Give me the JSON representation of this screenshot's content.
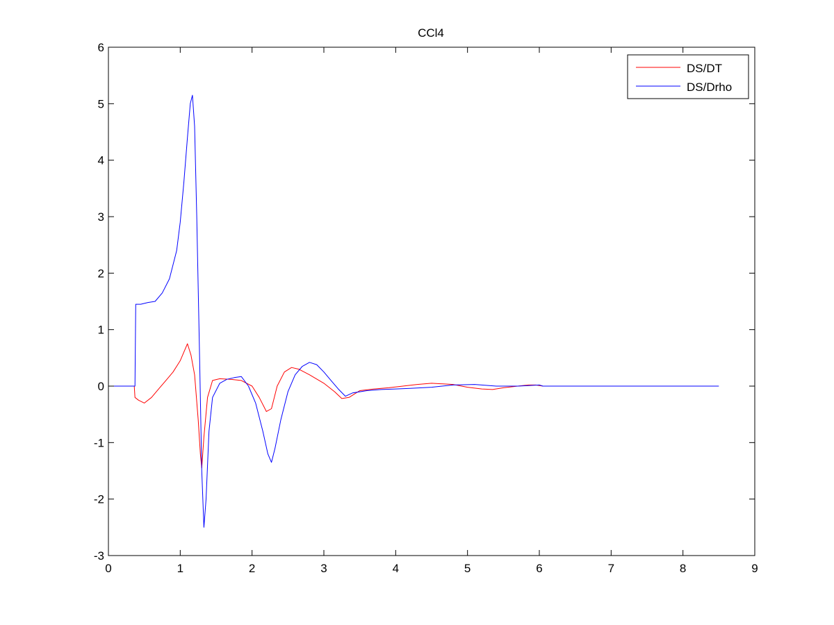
{
  "chart_data": {
    "type": "line",
    "title": "CCl4",
    "xlabel": "",
    "ylabel": "",
    "xlim": [
      0,
      9
    ],
    "ylim": [
      -3,
      6
    ],
    "xticks": [
      0,
      1,
      2,
      3,
      4,
      5,
      6,
      7,
      8,
      9
    ],
    "yticks": [
      -3,
      -2,
      -1,
      0,
      1,
      2,
      3,
      4,
      5,
      6
    ],
    "grid": false,
    "legend_position": "top-right",
    "series": [
      {
        "name": "DS/DT",
        "color": "#ff0000",
        "x": [
          0,
          0.36,
          0.37,
          0.42,
          0.5,
          0.6,
          0.7,
          0.8,
          0.9,
          1.0,
          1.05,
          1.1,
          1.15,
          1.2,
          1.25,
          1.28,
          1.3,
          1.33,
          1.38,
          1.45,
          1.55,
          1.7,
          1.85,
          2.0,
          2.1,
          2.2,
          2.27,
          2.35,
          2.45,
          2.55,
          2.65,
          2.8,
          3.0,
          3.15,
          3.25,
          3.35,
          3.5,
          3.7,
          3.9,
          4.1,
          4.3,
          4.5,
          4.8,
          5.0,
          5.2,
          5.35,
          5.5,
          5.7,
          5.85,
          5.95,
          6.05
        ],
        "y": [
          0,
          0,
          -0.2,
          -0.25,
          -0.3,
          -0.2,
          -0.05,
          0.1,
          0.25,
          0.45,
          0.6,
          0.75,
          0.55,
          0.2,
          -0.6,
          -1.2,
          -1.45,
          -0.9,
          -0.2,
          0.1,
          0.13,
          0.12,
          0.1,
          0.0,
          -0.2,
          -0.45,
          -0.4,
          0.0,
          0.25,
          0.33,
          0.3,
          0.2,
          0.05,
          -0.1,
          -0.22,
          -0.2,
          -0.08,
          -0.05,
          -0.03,
          0.0,
          0.03,
          0.05,
          0.03,
          -0.02,
          -0.05,
          -0.06,
          -0.03,
          0.0,
          0.02,
          0.02,
          0.0
        ]
      },
      {
        "name": "DS/Drho",
        "color": "#0000ff",
        "x": [
          0,
          0.37,
          0.38,
          0.45,
          0.55,
          0.65,
          0.75,
          0.85,
          0.95,
          1.0,
          1.05,
          1.1,
          1.14,
          1.17,
          1.2,
          1.23,
          1.27,
          1.3,
          1.33,
          1.36,
          1.4,
          1.45,
          1.55,
          1.65,
          1.75,
          1.85,
          1.95,
          2.05,
          2.15,
          2.22,
          2.27,
          2.32,
          2.4,
          2.5,
          2.6,
          2.7,
          2.8,
          2.9,
          3.0,
          3.1,
          3.2,
          3.3,
          3.4,
          3.6,
          3.8,
          4.0,
          4.2,
          4.5,
          4.8,
          5.1,
          5.4,
          5.7,
          6.0,
          6.05,
          8.5
        ],
        "y": [
          0,
          0,
          1.45,
          1.45,
          1.48,
          1.5,
          1.65,
          1.9,
          2.4,
          2.9,
          3.6,
          4.4,
          5.0,
          5.15,
          4.6,
          3.0,
          0.5,
          -1.5,
          -2.5,
          -2.0,
          -0.8,
          -0.2,
          0.05,
          0.12,
          0.15,
          0.17,
          0.0,
          -0.3,
          -0.8,
          -1.2,
          -1.35,
          -1.1,
          -0.6,
          -0.1,
          0.2,
          0.35,
          0.42,
          0.38,
          0.25,
          0.1,
          -0.05,
          -0.18,
          -0.12,
          -0.08,
          -0.06,
          -0.05,
          -0.04,
          -0.02,
          0.02,
          0.03,
          0.0,
          0.0,
          0.02,
          0.0,
          0.0
        ]
      }
    ]
  }
}
